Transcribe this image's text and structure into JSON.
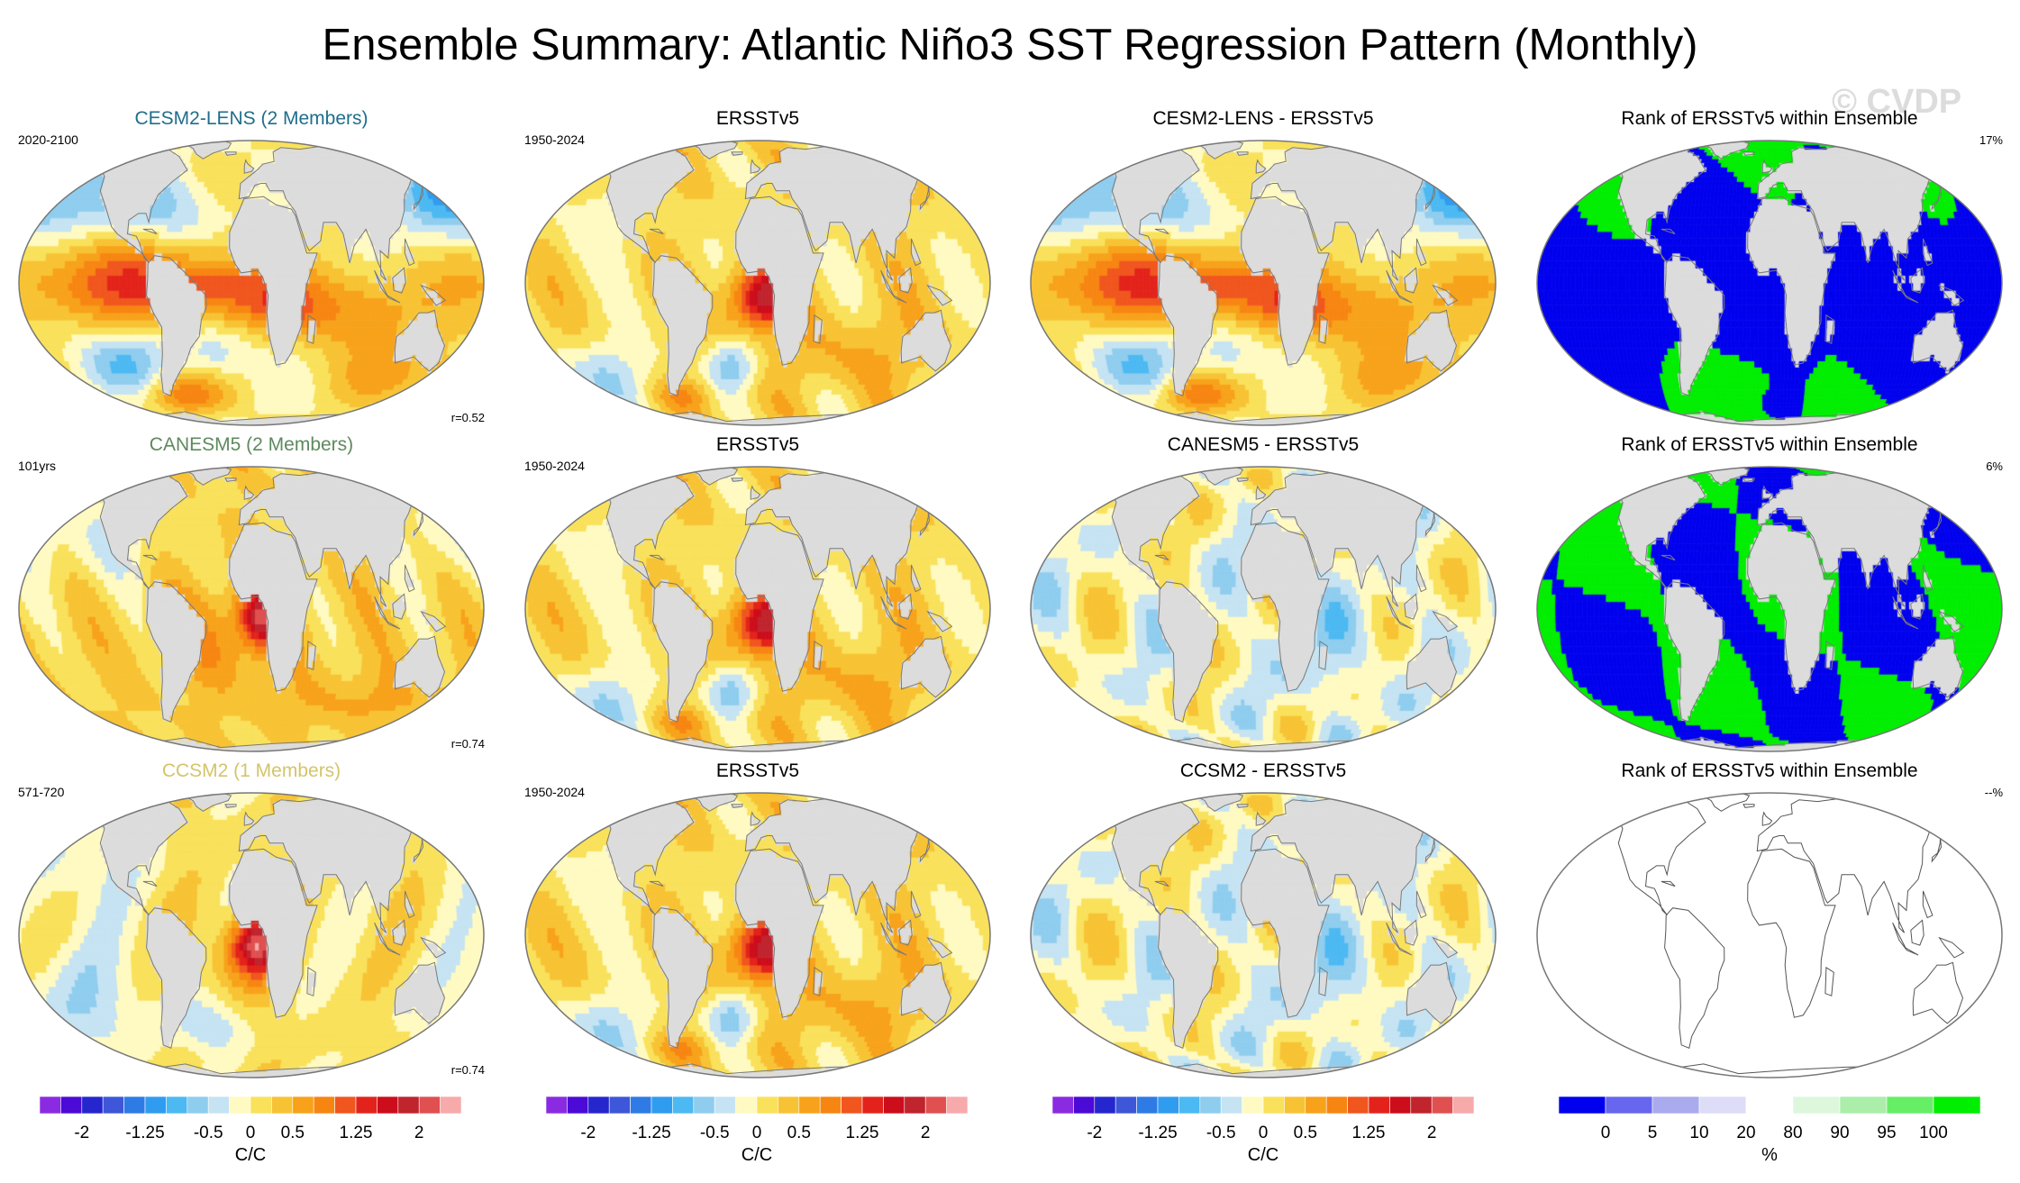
{
  "title": "Ensemble Summary: Atlantic Niño3 SST Regression Pattern (Monthly)",
  "watermark": "© CVDP",
  "colors": {
    "land": "#dcdcdc",
    "coast": "#7a7a7a",
    "panel_title_row1": "#1f6e8c",
    "panel_title_row2": "#5d8a5d",
    "panel_title_row3": "#d4c46a"
  },
  "chart_data": [
    {
      "type": "heatmap",
      "title": "CESM2-LENS (2 Members)",
      "left_label": "2020-2100",
      "right_label": "r=0.52",
      "pattern": "model_cesm2",
      "units": "C/C"
    },
    {
      "type": "heatmap",
      "title": "ERSSTv5",
      "left_label": "1950-2024",
      "right_label": "",
      "pattern": "obs",
      "units": "C/C"
    },
    {
      "type": "heatmap",
      "title": "CESM2-LENS - ERSSTv5",
      "left_label": "",
      "right_label": "",
      "pattern": "model_cesm2",
      "units": "C/C"
    },
    {
      "type": "heatmap",
      "title": "Rank of ERSSTv5 within Ensemble",
      "left_label": "",
      "right_label": "17%",
      "pattern": "rank_cesm2",
      "units": "%"
    },
    {
      "type": "heatmap",
      "title": "CANESM5 (2 Members)",
      "left_label": "101yrs",
      "right_label": "r=0.74",
      "pattern": "model_canesm5",
      "units": "C/C"
    },
    {
      "type": "heatmap",
      "title": "ERSSTv5",
      "left_label": "1950-2024",
      "right_label": "",
      "pattern": "obs",
      "units": "C/C"
    },
    {
      "type": "heatmap",
      "title": "CANESM5 - ERSSTv5",
      "left_label": "",
      "right_label": "",
      "pattern": "diff",
      "units": "C/C"
    },
    {
      "type": "heatmap",
      "title": "Rank of ERSSTv5 within Ensemble",
      "left_label": "",
      "right_label": "6%",
      "pattern": "rank_canesm5",
      "units": "%"
    },
    {
      "type": "heatmap",
      "title": "CCSM2 (1 Members)",
      "left_label": "571-720",
      "right_label": "r=0.74",
      "pattern": "model_ccsm2",
      "units": "C/C"
    },
    {
      "type": "heatmap",
      "title": "ERSSTv5",
      "left_label": "1950-2024",
      "right_label": "",
      "pattern": "obs",
      "units": "C/C"
    },
    {
      "type": "heatmap",
      "title": "CCSM2 - ERSSTv5",
      "left_label": "",
      "right_label": "",
      "pattern": "diff",
      "units": "C/C"
    },
    {
      "type": "heatmap",
      "title": "Rank of ERSSTv5 within Ensemble",
      "left_label": "",
      "right_label": "--%",
      "pattern": "empty",
      "units": "%"
    }
  ],
  "colorbars": [
    {
      "name": "sst-colorbar",
      "units": "C/C",
      "colors": [
        "#8a2be2",
        "#4b0ad6",
        "#2626cf",
        "#3d57d8",
        "#2e7be6",
        "#2f9cf0",
        "#4cb9f2",
        "#8fcdef",
        "#c5e3f2",
        "#fffac2",
        "#f9e15b",
        "#f7c334",
        "#f7a21a",
        "#f78512",
        "#f0561e",
        "#e3231b",
        "#cc0d1b",
        "#c0242d",
        "#e05050",
        "#f7aaaa"
      ],
      "tick_labels": [
        "-2",
        "-1.25",
        "-0.5",
        "0",
        "0.5",
        "1.25",
        "2"
      ],
      "tick_values": [
        -2,
        -1.25,
        -0.5,
        0,
        0.5,
        1.25,
        2
      ],
      "vmin": -2.5,
      "vmax": 2.5
    },
    {
      "name": "rank-colorbar",
      "units": "%",
      "colors": [
        "#0000ee",
        "#6666ee",
        "#aaaaee",
        "#ddddf7",
        "#ffffff",
        "#ddf7dd",
        "#aaeeaa",
        "#66ee66",
        "#00ee00"
      ],
      "tick_labels": [
        "0",
        "5",
        "10",
        "20",
        "80",
        "90",
        "95",
        "100"
      ],
      "tick_positions": [
        1,
        2,
        3,
        4,
        5,
        6,
        7,
        8
      ]
    }
  ]
}
